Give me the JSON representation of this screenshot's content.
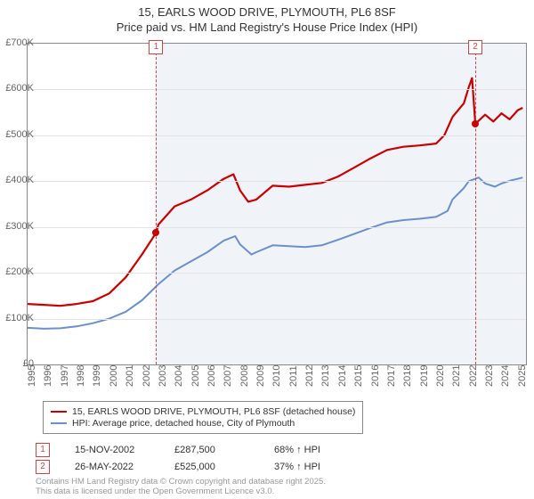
{
  "title1": "15, EARLS WOOD DRIVE, PLYMOUTH, PL6 8SF",
  "title2": "Price paid vs. HM Land Registry's House Price Index (HPI)",
  "chart": {
    "type": "line",
    "background_color": "#ffffff",
    "grid_color": "#e3e3e3",
    "border_color": "#888888",
    "xlim": [
      1995,
      2025.5
    ],
    "ylim": [
      0,
      700000
    ],
    "yticks": [
      0,
      100000,
      200000,
      300000,
      400000,
      500000,
      600000,
      700000
    ],
    "ytick_labels": [
      "£0",
      "£100K",
      "£200K",
      "£300K",
      "£400K",
      "£500K",
      "£600K",
      "£700K"
    ],
    "xticks": [
      1995,
      1996,
      1997,
      1998,
      1999,
      2000,
      2001,
      2002,
      2003,
      2004,
      2005,
      2006,
      2007,
      2008,
      2009,
      2010,
      2011,
      2012,
      2013,
      2014,
      2015,
      2016,
      2017,
      2018,
      2019,
      2020,
      2021,
      2022,
      2023,
      2024,
      2025
    ],
    "label_fontsize": 11,
    "label_color": "#666666",
    "line_width": 2,
    "shade_color": "rgba(200,215,235,0.28)",
    "shade_from_x": 2002.87,
    "series": [
      {
        "name": "price_paid",
        "label": "15, EARLS WOOD DRIVE, PLYMOUTH, PL6 8SF (detached house)",
        "color": "#cc0000",
        "width": 2.2,
        "data": [
          [
            1995,
            132000
          ],
          [
            1996,
            130000
          ],
          [
            1997,
            128000
          ],
          [
            1998,
            132000
          ],
          [
            1999,
            138000
          ],
          [
            2000,
            155000
          ],
          [
            2001,
            190000
          ],
          [
            2002,
            240000
          ],
          [
            2002.87,
            287500
          ],
          [
            2003,
            305000
          ],
          [
            2004,
            345000
          ],
          [
            2005,
            360000
          ],
          [
            2006,
            380000
          ],
          [
            2007,
            405000
          ],
          [
            2007.6,
            415000
          ],
          [
            2008,
            380000
          ],
          [
            2008.5,
            355000
          ],
          [
            2009,
            360000
          ],
          [
            2010,
            390000
          ],
          [
            2011,
            388000
          ],
          [
            2012,
            392000
          ],
          [
            2013,
            396000
          ],
          [
            2014,
            410000
          ],
          [
            2015,
            430000
          ],
          [
            2016,
            450000
          ],
          [
            2017,
            468000
          ],
          [
            2018,
            475000
          ],
          [
            2019,
            478000
          ],
          [
            2020,
            482000
          ],
          [
            2020.5,
            500000
          ],
          [
            2021,
            540000
          ],
          [
            2021.7,
            570000
          ],
          [
            2022,
            605000
          ],
          [
            2022.2,
            625000
          ],
          [
            2022.4,
            525000
          ],
          [
            2023,
            545000
          ],
          [
            2023.5,
            530000
          ],
          [
            2024,
            548000
          ],
          [
            2024.5,
            535000
          ],
          [
            2025,
            555000
          ],
          [
            2025.3,
            560000
          ]
        ]
      },
      {
        "name": "hpi",
        "label": "HPI: Average price, detached house, City of Plymouth",
        "color": "#6a8fd0",
        "width": 2,
        "data": [
          [
            1995,
            80000
          ],
          [
            1996,
            78000
          ],
          [
            1997,
            79000
          ],
          [
            1998,
            83000
          ],
          [
            1999,
            90000
          ],
          [
            2000,
            100000
          ],
          [
            2001,
            115000
          ],
          [
            2002,
            140000
          ],
          [
            2003,
            175000
          ],
          [
            2004,
            205000
          ],
          [
            2005,
            225000
          ],
          [
            2006,
            245000
          ],
          [
            2007,
            270000
          ],
          [
            2007.7,
            280000
          ],
          [
            2008,
            262000
          ],
          [
            2008.7,
            240000
          ],
          [
            2009,
            245000
          ],
          [
            2010,
            260000
          ],
          [
            2011,
            258000
          ],
          [
            2012,
            256000
          ],
          [
            2013,
            260000
          ],
          [
            2014,
            272000
          ],
          [
            2015,
            285000
          ],
          [
            2016,
            298000
          ],
          [
            2017,
            310000
          ],
          [
            2018,
            315000
          ],
          [
            2019,
            318000
          ],
          [
            2020,
            322000
          ],
          [
            2020.7,
            335000
          ],
          [
            2021,
            360000
          ],
          [
            2021.7,
            385000
          ],
          [
            2022,
            400000
          ],
          [
            2022.6,
            408000
          ],
          [
            2023,
            395000
          ],
          [
            2023.6,
            388000
          ],
          [
            2024,
            395000
          ],
          [
            2024.6,
            402000
          ],
          [
            2025,
            405000
          ],
          [
            2025.3,
            408000
          ]
        ]
      }
    ],
    "events": [
      {
        "num": "1",
        "x": 2002.87,
        "dot_x": 2002.87,
        "dot_y": 287500,
        "dot_color": "#cc0000"
      },
      {
        "num": "2",
        "x": 2022.4,
        "dot_x": 2022.4,
        "dot_y": 525000,
        "dot_color": "#cc0000"
      }
    ]
  },
  "legend": {
    "rows": [
      {
        "color": "#cc0000",
        "label": "15, EARLS WOOD DRIVE, PLYMOUTH, PL6 8SF (detached house)"
      },
      {
        "color": "#6a8fd0",
        "label": "HPI: Average price, detached house, City of Plymouth"
      }
    ]
  },
  "transactions": [
    {
      "num": "1",
      "date": "15-NOV-2002",
      "price": "£287,500",
      "pct": "68% ↑ HPI"
    },
    {
      "num": "2",
      "date": "26-MAY-2022",
      "price": "£525,000",
      "pct": "37% ↑ HPI"
    }
  ],
  "footer1": "Contains HM Land Registry data © Crown copyright and database right 2025.",
  "footer2": "This data is licensed under the Open Government Licence v3.0."
}
